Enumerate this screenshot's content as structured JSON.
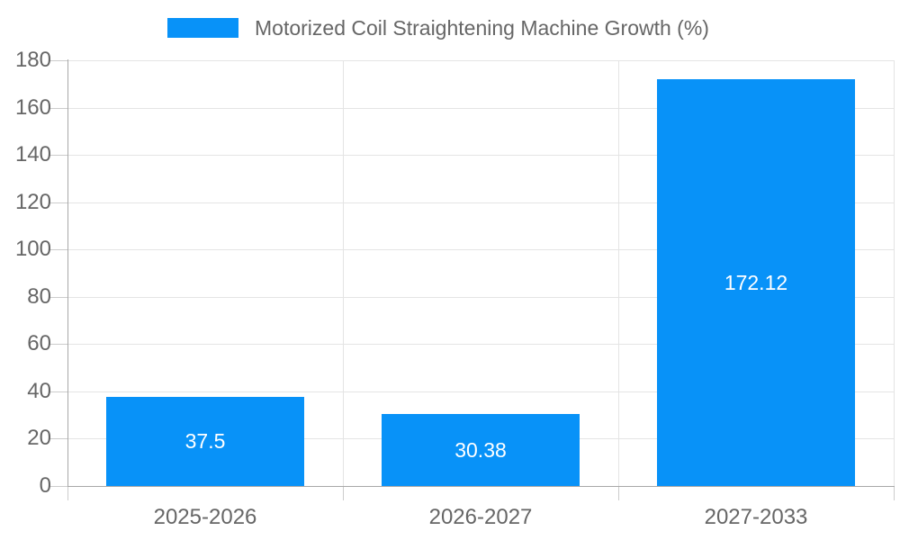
{
  "legend": {
    "label": "Motorized Coil Straightening Machine Growth (%)",
    "swatch_color": "#0892f8"
  },
  "chart_data": {
    "type": "bar",
    "title": "Motorized Coil Straightening Machine Growth (%)",
    "categories": [
      "2025-2026",
      "2026-2027",
      "2027-2033"
    ],
    "values": [
      37.5,
      30.38,
      172.12
    ],
    "bar_labels": [
      "37.5",
      "30.38",
      "172.12"
    ],
    "xlabel": "",
    "ylabel": "",
    "ylim": [
      0,
      180
    ],
    "ytick_step": 20,
    "grid": true,
    "legend_position": "top",
    "colors": {
      "bar": "#0892f8",
      "bar_label_text": "#ffffff",
      "grid": "#e4e4e4",
      "tick": "#cccccc",
      "axis": "#a8a8a8",
      "text": "#666666"
    }
  }
}
